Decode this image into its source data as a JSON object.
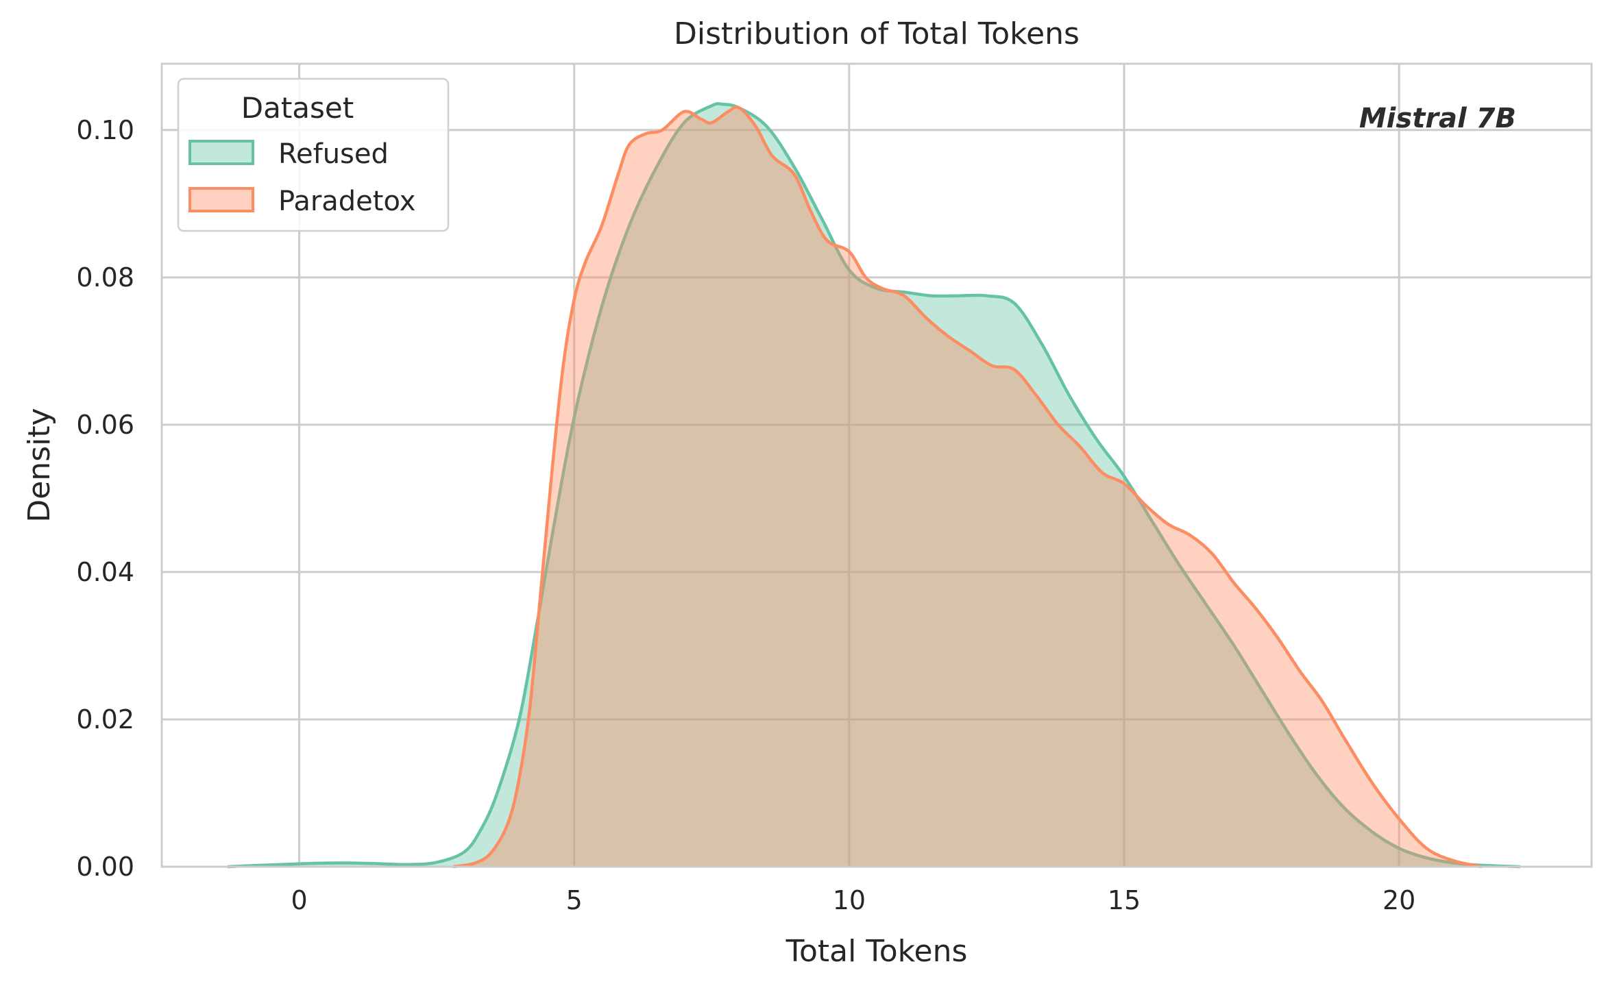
{
  "chart_data": {
    "type": "area",
    "title": "Distribution of Total Tokens",
    "xlabel": "Total Tokens",
    "ylabel": "Density",
    "xlim": [
      -2.5,
      23.5
    ],
    "ylim": [
      0,
      0.109
    ],
    "x_ticks": [
      0,
      5,
      10,
      15,
      20
    ],
    "y_ticks": [
      0.0,
      0.02,
      0.04,
      0.06,
      0.08,
      0.1
    ],
    "x_tick_labels": [
      "0",
      "5",
      "10",
      "15",
      "20"
    ],
    "y_tick_labels": [
      "0.00",
      "0.02",
      "0.04",
      "0.06",
      "0.08",
      "0.10"
    ],
    "grid": true,
    "legend": {
      "title": "Dataset",
      "placement": "top-left",
      "entries": [
        "Refused",
        "Paradetox"
      ]
    },
    "annotation": "Mistral 7B",
    "series": [
      {
        "name": "Refused",
        "color": "#66c2a5",
        "x": [
          -1.3,
          -1.0,
          0.0,
          0.5,
          1.0,
          1.5,
          2.0,
          2.5,
          3.0,
          3.3,
          3.6,
          4.0,
          4.3,
          4.6,
          5.0,
          5.5,
          6.0,
          6.5,
          7.0,
          7.5,
          7.7,
          8.0,
          8.5,
          9.0,
          9.5,
          10.0,
          10.5,
          11.0,
          11.5,
          12.0,
          12.5,
          13.0,
          13.5,
          14.0,
          14.5,
          15.0,
          15.5,
          16.0,
          16.5,
          17.0,
          17.5,
          18.0,
          18.5,
          19.0,
          19.5,
          20.0,
          20.5,
          21.0,
          21.5,
          22.2
        ],
        "y": [
          0.0,
          0.0001,
          0.0004,
          0.0005,
          0.0005,
          0.0004,
          0.0003,
          0.0006,
          0.002,
          0.005,
          0.01,
          0.02,
          0.032,
          0.045,
          0.061,
          0.076,
          0.087,
          0.095,
          0.101,
          0.1033,
          0.1035,
          0.103,
          0.1005,
          0.095,
          0.088,
          0.081,
          0.0785,
          0.078,
          0.0775,
          0.0775,
          0.0775,
          0.0765,
          0.071,
          0.064,
          0.058,
          0.053,
          0.047,
          0.041,
          0.0355,
          0.03,
          0.024,
          0.018,
          0.0125,
          0.008,
          0.0048,
          0.0025,
          0.0012,
          0.0005,
          0.0002,
          0.0
        ]
      },
      {
        "name": "Paradetox",
        "color": "#fc8d62",
        "x": [
          2.8,
          3.2,
          3.5,
          3.8,
          4.0,
          4.2,
          4.4,
          4.6,
          4.8,
          5.0,
          5.2,
          5.5,
          5.8,
          6.0,
          6.3,
          6.6,
          7.0,
          7.3,
          7.5,
          7.8,
          8.0,
          8.3,
          8.6,
          9.0,
          9.3,
          9.6,
          10.0,
          10.3,
          10.6,
          11.0,
          11.4,
          11.8,
          12.2,
          12.6,
          13.0,
          13.4,
          13.8,
          14.2,
          14.6,
          15.0,
          15.4,
          15.8,
          16.2,
          16.6,
          17.0,
          17.4,
          17.8,
          18.2,
          18.6,
          19.0,
          19.5,
          20.0,
          20.5,
          21.0,
          21.5
        ],
        "y": [
          0.0,
          0.0005,
          0.002,
          0.006,
          0.012,
          0.022,
          0.038,
          0.054,
          0.068,
          0.077,
          0.082,
          0.087,
          0.094,
          0.098,
          0.0995,
          0.1,
          0.1025,
          0.1015,
          0.101,
          0.1025,
          0.103,
          0.1005,
          0.0965,
          0.094,
          0.089,
          0.085,
          0.0835,
          0.08,
          0.0785,
          0.0775,
          0.0745,
          0.072,
          0.07,
          0.068,
          0.0675,
          0.064,
          0.06,
          0.057,
          0.0535,
          0.052,
          0.049,
          0.0465,
          0.045,
          0.0425,
          0.0385,
          0.035,
          0.031,
          0.0265,
          0.0225,
          0.0175,
          0.0115,
          0.0065,
          0.0025,
          0.0008,
          0.0
        ]
      }
    ]
  }
}
